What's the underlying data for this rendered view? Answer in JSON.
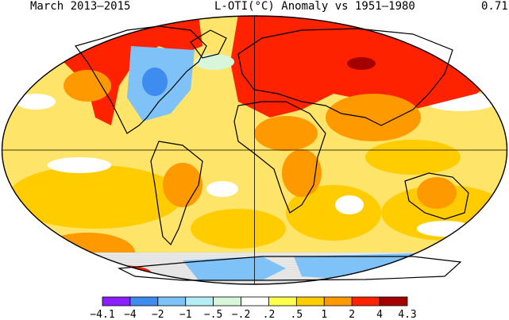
{
  "title": {
    "left": "March 2013–2015",
    "center": "L-OTI(°C) Anomaly vs 1951–1980",
    "right": "0.71"
  },
  "legend": {
    "colors": [
      "#8b1fff",
      "#3f8cf0",
      "#7fc2f7",
      "#b4ecf7",
      "#d8f7da",
      "#ffffff",
      "#ffff4d",
      "#ffcc00",
      "#ff9900",
      "#ff2200",
      "#a50000"
    ],
    "labels": [
      "−4.1",
      "−4",
      "−2",
      "−1",
      "−.5",
      "−.2",
      ".2",
      ".5",
      "1",
      "2",
      "4",
      "4.3"
    ]
  },
  "map_colors": {
    "ocean_base": "#ffe46a",
    "ocean_warm": "#ffcc00",
    "ocean_cool": "#ffffff",
    "land_hot": "#ff2200",
    "land_very_hot": "#a50000",
    "land_warm": "#ff9900",
    "cold": "#7fc2f7",
    "very_cold": "#3f8cf0",
    "mild": "#d8f7da",
    "no_data": "#e8e8e8"
  }
}
